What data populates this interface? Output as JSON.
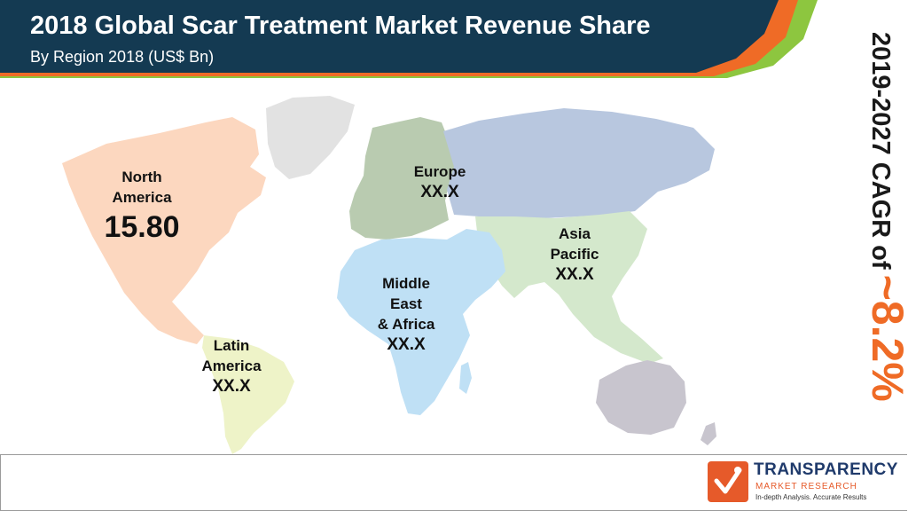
{
  "header": {
    "title": "2018 Global Scar Treatment Market Revenue Share",
    "subtitle": "By Region 2018 (US$ Bn)"
  },
  "chart_data": {
    "type": "map",
    "title": "2018 Global Scar Treatment Market Revenue Share",
    "subtitle": "By Region 2018 (US$ Bn)",
    "regions": [
      {
        "name_lines": [
          "North",
          "America"
        ],
        "value": "15.80",
        "color": "#fcd7bf"
      },
      {
        "name_lines": [
          "Europe"
        ],
        "value": "XX.X",
        "color": "#b9cbb0"
      },
      {
        "name_lines": [
          "Asia",
          "Pacific"
        ],
        "value": "XX.X",
        "color": "#d4e8cc"
      },
      {
        "name_lines": [
          "Middle",
          "East",
          "& Africa"
        ],
        "value": "XX.X",
        "color": "#bfe0f5"
      },
      {
        "name_lines": [
          "Latin",
          "America"
        ],
        "value": "XX.X",
        "color": "#eef3c8"
      }
    ]
  },
  "cagr": {
    "text": "2019-2027 CAGR of",
    "value": "~8.2%"
  },
  "logo": {
    "name": "TRANSPARENCY",
    "sub": "MARKET RESEARCH",
    "tagline": "In-depth Analysis. Accurate Results"
  },
  "colors": {
    "banner": "#143a52",
    "accent_orange": "#ef6b26",
    "accent_green": "#8dc63f"
  }
}
